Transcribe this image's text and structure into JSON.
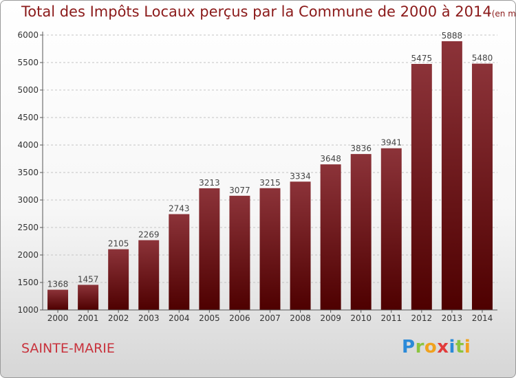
{
  "chart_data": {
    "type": "bar",
    "title": "Total des Impôts Locaux perçus par la Commune de 2000 à 2014",
    "unit_label": "(en milliers d'€)",
    "categories": [
      "2000",
      "2001",
      "2002",
      "2003",
      "2004",
      "2005",
      "2006",
      "2007",
      "2008",
      "2009",
      "2010",
      "2011",
      "2012",
      "2013",
      "2014"
    ],
    "values": [
      1368,
      1457,
      2105,
      2269,
      2743,
      3213,
      3077,
      3215,
      3334,
      3648,
      3836,
      3941,
      5475,
      5888,
      5480
    ],
    "ylim": [
      1000,
      6000
    ],
    "yticks": [
      1000,
      1500,
      2000,
      2500,
      3000,
      3500,
      4000,
      4500,
      5000,
      5500,
      6000
    ],
    "grid": "horizontal dashed",
    "xlabel": "",
    "ylabel": ""
  },
  "commune": "SAINTE-MARIE",
  "brand": {
    "letters": [
      "P",
      "r",
      "o",
      "x",
      "i",
      "t",
      "i"
    ],
    "colors": [
      "#2b8ad8",
      "#8bc43f",
      "#f0a21e",
      "#e23b3b",
      "#2b8ad8",
      "#8bc43f",
      "#f0a21e"
    ]
  },
  "colors": {
    "bar_top": "#8c3339",
    "bar_bottom": "#4e0000",
    "text": "#8b1a1a",
    "commune": "#c8323c",
    "axis": "#555555"
  }
}
